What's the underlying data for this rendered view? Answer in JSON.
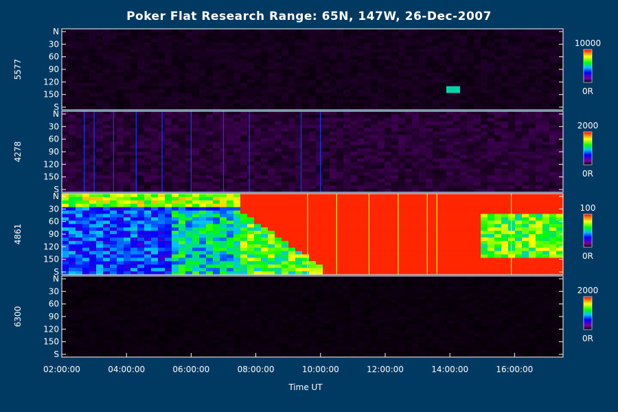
{
  "chart_data": {
    "type": "heatmap",
    "title": "Poker Flat Research Range: 65N, 147W, 26-Dec-2007",
    "xlabel": "Time UT",
    "x_range": [
      "02:00:00",
      "17:30:00"
    ],
    "x_ticks": [
      "02:00:00",
      "04:00:00",
      "06:00:00",
      "08:00:00",
      "10:00:00",
      "12:00:00",
      "14:00:00",
      "16:00:00"
    ],
    "y_ticks": [
      "N",
      "30",
      "60",
      "90",
      "120",
      "150",
      "S"
    ],
    "y_range": [
      0,
      180
    ],
    "panels": [
      {
        "wavelength": "5577",
        "colorbar_max": "10000",
        "colorbar_min": "0R",
        "scale_max": 10000,
        "background_level": 0.02,
        "notes": "mostly dark, bright spot near 14:00 at ~135"
      },
      {
        "wavelength": "4278",
        "colorbar_max": "2000",
        "colorbar_min": "0R",
        "scale_max": 2000,
        "background_level": 0.04,
        "notes": "dark with sparse vertical streaks"
      },
      {
        "wavelength": "4861",
        "colorbar_max": "100",
        "colorbar_min": "0R",
        "scale_max": 100,
        "background_level": 0.95,
        "notes": "saturated red after ~08:00, blue/green before"
      },
      {
        "wavelength": "6300",
        "colorbar_max": "2000",
        "colorbar_min": "0R",
        "scale_max": 2000,
        "background_level": 0.01,
        "notes": "nearly black"
      }
    ],
    "colors": {
      "background": "#003a63",
      "frame": "#ffffff"
    }
  }
}
